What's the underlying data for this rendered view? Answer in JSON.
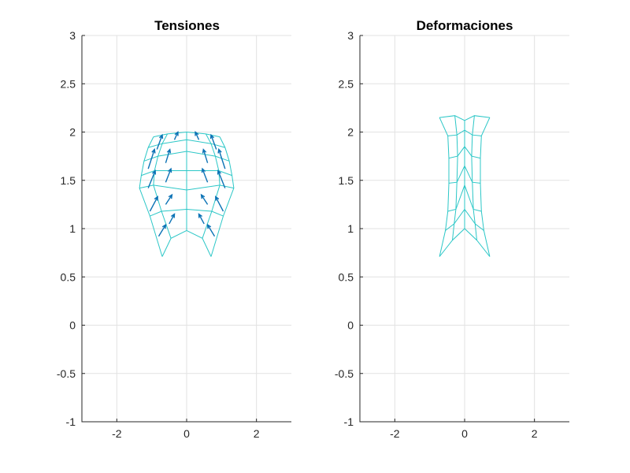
{
  "colors": {
    "mesh": "#2cc7c7",
    "arrows": "#0b72b5",
    "grid": "#e2e2e2",
    "axis": "#262626"
  },
  "chart_data": [
    {
      "type": "line",
      "title": "Tensiones",
      "xlim": [
        -3,
        3
      ],
      "ylim": [
        -1,
        3
      ],
      "xticks": [
        "-2",
        "0",
        "2"
      ],
      "yticks": [
        "-1",
        "-0.5",
        "0",
        "0.5",
        "1",
        "1.5",
        "2",
        "2.5",
        "3"
      ],
      "grid": true,
      "mesh": {
        "description_hint": "curved shell mesh (arch), 5 x 7 cells",
        "nodes": [
          [
            [
              -0.7,
              0.71
            ],
            [
              -1.05,
              1.13
            ],
            [
              -1.35,
              1.42
            ],
            [
              -1.3,
              1.55
            ],
            [
              -1.22,
              1.7
            ],
            [
              -1.1,
              1.84
            ],
            [
              -0.95,
              1.95
            ]
          ],
          [
            [
              -0.45,
              0.9
            ],
            [
              -0.72,
              1.18
            ],
            [
              -0.95,
              1.45
            ],
            [
              -0.92,
              1.6
            ],
            [
              -0.82,
              1.75
            ],
            [
              -0.7,
              1.88
            ],
            [
              -0.55,
              1.98
            ]
          ],
          [
            [
              0.0,
              0.98
            ],
            [
              0.0,
              1.2
            ],
            [
              0.0,
              1.4
            ],
            [
              0.0,
              1.6
            ],
            [
              0.0,
              1.8
            ],
            [
              0.0,
              1.92
            ],
            [
              0.0,
              2.0
            ]
          ],
          [
            [
              0.45,
              0.9
            ],
            [
              0.72,
              1.18
            ],
            [
              0.95,
              1.45
            ],
            [
              0.92,
              1.6
            ],
            [
              0.82,
              1.75
            ],
            [
              0.7,
              1.88
            ],
            [
              0.55,
              1.98
            ]
          ],
          [
            [
              0.7,
              0.71
            ],
            [
              1.05,
              1.13
            ],
            [
              1.35,
              1.42
            ],
            [
              1.3,
              1.55
            ],
            [
              1.22,
              1.7
            ],
            [
              1.1,
              1.84
            ],
            [
              0.95,
              1.95
            ]
          ]
        ]
      },
      "arrows": [
        {
          "x": -0.8,
          "y": 0.92,
          "u": 0.2,
          "v": 0.12
        },
        {
          "x": -0.5,
          "y": 1.05,
          "u": 0.15,
          "v": 0.1
        },
        {
          "x": 0.5,
          "y": 1.05,
          "u": -0.15,
          "v": 0.1
        },
        {
          "x": 0.8,
          "y": 0.92,
          "u": -0.2,
          "v": 0.12
        },
        {
          "x": -1.05,
          "y": 1.18,
          "u": 0.22,
          "v": 0.15
        },
        {
          "x": -0.6,
          "y": 1.25,
          "u": 0.18,
          "v": 0.1
        },
        {
          "x": 0.6,
          "y": 1.25,
          "u": -0.18,
          "v": 0.1
        },
        {
          "x": 1.05,
          "y": 1.18,
          "u": -0.22,
          "v": 0.15
        },
        {
          "x": -1.1,
          "y": 1.42,
          "u": 0.2,
          "v": 0.18
        },
        {
          "x": -0.6,
          "y": 1.48,
          "u": 0.15,
          "v": 0.14
        },
        {
          "x": 0.6,
          "y": 1.48,
          "u": -0.15,
          "v": 0.14
        },
        {
          "x": 1.1,
          "y": 1.42,
          "u": -0.2,
          "v": 0.18
        },
        {
          "x": -1.1,
          "y": 1.62,
          "u": 0.18,
          "v": 0.2
        },
        {
          "x": -0.6,
          "y": 1.68,
          "u": 0.12,
          "v": 0.14
        },
        {
          "x": 0.6,
          "y": 1.68,
          "u": -0.12,
          "v": 0.14
        },
        {
          "x": 1.1,
          "y": 1.62,
          "u": -0.18,
          "v": 0.2
        },
        {
          "x": -0.85,
          "y": 1.82,
          "u": 0.15,
          "v": 0.15
        },
        {
          "x": -0.35,
          "y": 1.92,
          "u": 0.1,
          "v": 0.08
        },
        {
          "x": 0.35,
          "y": 1.92,
          "u": -0.1,
          "v": 0.08
        },
        {
          "x": 0.85,
          "y": 1.82,
          "u": -0.15,
          "v": 0.15
        }
      ]
    },
    {
      "type": "line",
      "title": "Deformaciones",
      "xlim": [
        -3,
        3
      ],
      "ylim": [
        -1,
        3
      ],
      "xticks": [
        "-2",
        "0",
        "2"
      ],
      "yticks": [
        "-1",
        "-0.5",
        "0",
        "0.5",
        "1",
        "1.5",
        "2",
        "2.5",
        "3"
      ],
      "grid": true,
      "mesh": {
        "nodes": [
          [
            [
              -0.72,
              0.71
            ],
            [
              -0.55,
              0.98
            ],
            [
              -0.48,
              1.18
            ],
            [
              -0.45,
              1.47
            ],
            [
              -0.45,
              1.73
            ],
            [
              -0.48,
              1.96
            ],
            [
              -0.72,
              2.15
            ]
          ],
          [
            [
              -0.35,
              0.88
            ],
            [
              -0.3,
              1.05
            ],
            [
              -0.25,
              1.2
            ],
            [
              -0.22,
              1.48
            ],
            [
              -0.2,
              1.75
            ],
            [
              -0.22,
              1.97
            ],
            [
              -0.28,
              2.17
            ]
          ],
          [
            [
              0.0,
              1.0
            ],
            [
              0.0,
              1.2
            ],
            [
              0.0,
              1.45
            ],
            [
              0.0,
              1.65
            ],
            [
              0.0,
              1.85
            ],
            [
              0.0,
              2.02
            ],
            [
              0.0,
              2.12
            ]
          ],
          [
            [
              0.35,
              0.88
            ],
            [
              0.3,
              1.05
            ],
            [
              0.25,
              1.2
            ],
            [
              0.22,
              1.48
            ],
            [
              0.2,
              1.75
            ],
            [
              0.22,
              1.97
            ],
            [
              0.28,
              2.17
            ]
          ],
          [
            [
              0.72,
              0.71
            ],
            [
              0.55,
              0.98
            ],
            [
              0.48,
              1.18
            ],
            [
              0.45,
              1.47
            ],
            [
              0.45,
              1.73
            ],
            [
              0.48,
              1.96
            ],
            [
              0.72,
              2.15
            ]
          ]
        ]
      }
    }
  ]
}
